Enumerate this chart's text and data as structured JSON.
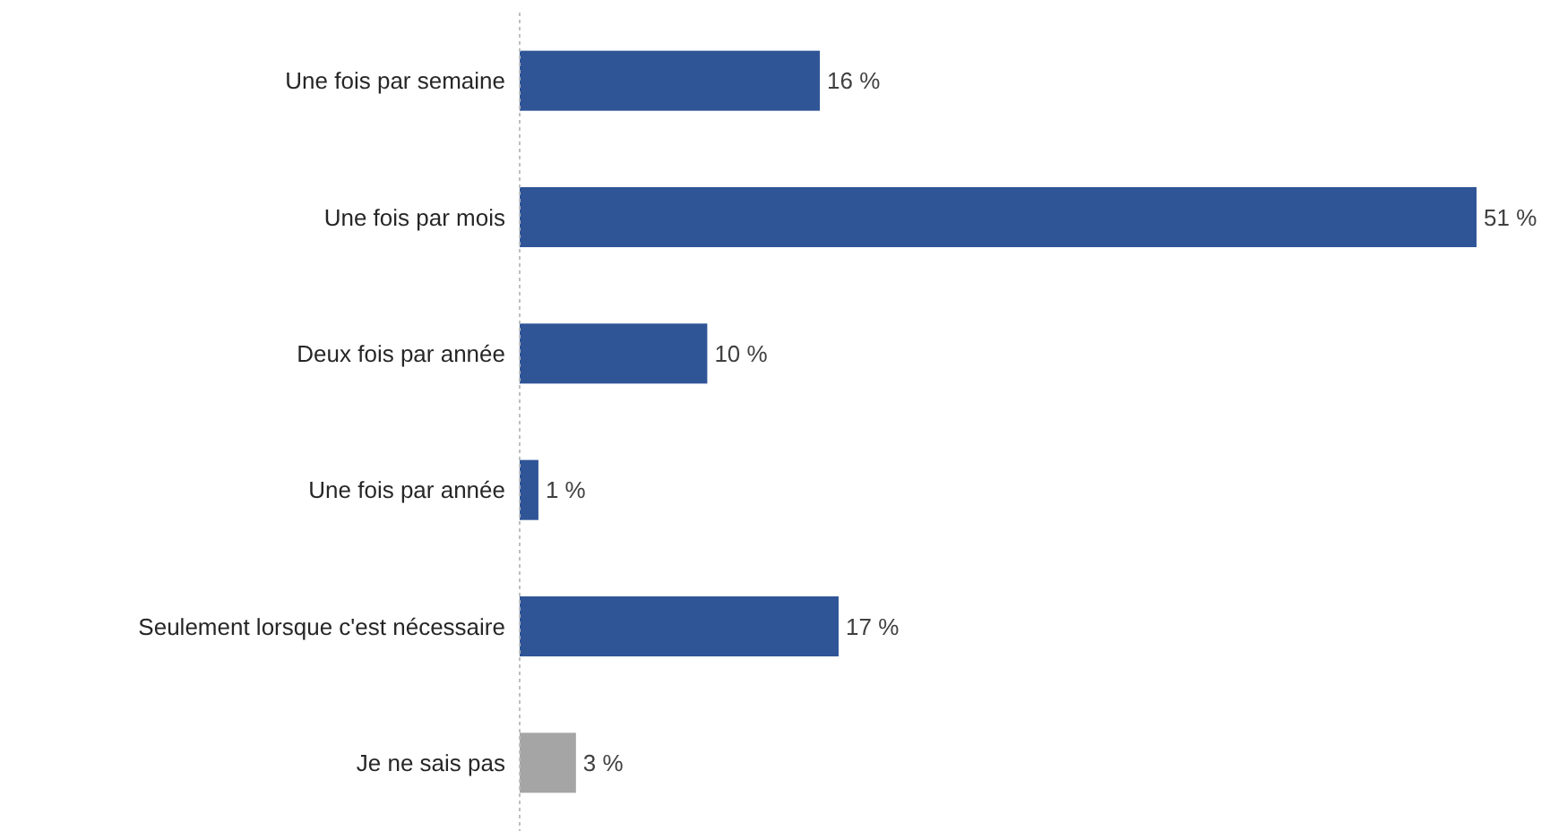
{
  "chart_data": {
    "type": "bar",
    "orientation": "horizontal",
    "categories": [
      "Une fois par semaine",
      "Une fois par mois",
      "Deux fois par année",
      "Une fois par année",
      "Seulement lorsque c'est nécessaire",
      "Je ne sais pas"
    ],
    "values": [
      16,
      51,
      10,
      1,
      17,
      3
    ],
    "colors": [
      "#2f5597",
      "#2f5597",
      "#2f5597",
      "#2f5597",
      "#2f5597",
      "#a5a5a5"
    ],
    "value_labels": [
      "16 %",
      "51 %",
      "10 %",
      "1 %",
      "17 %",
      "3 %"
    ]
  }
}
